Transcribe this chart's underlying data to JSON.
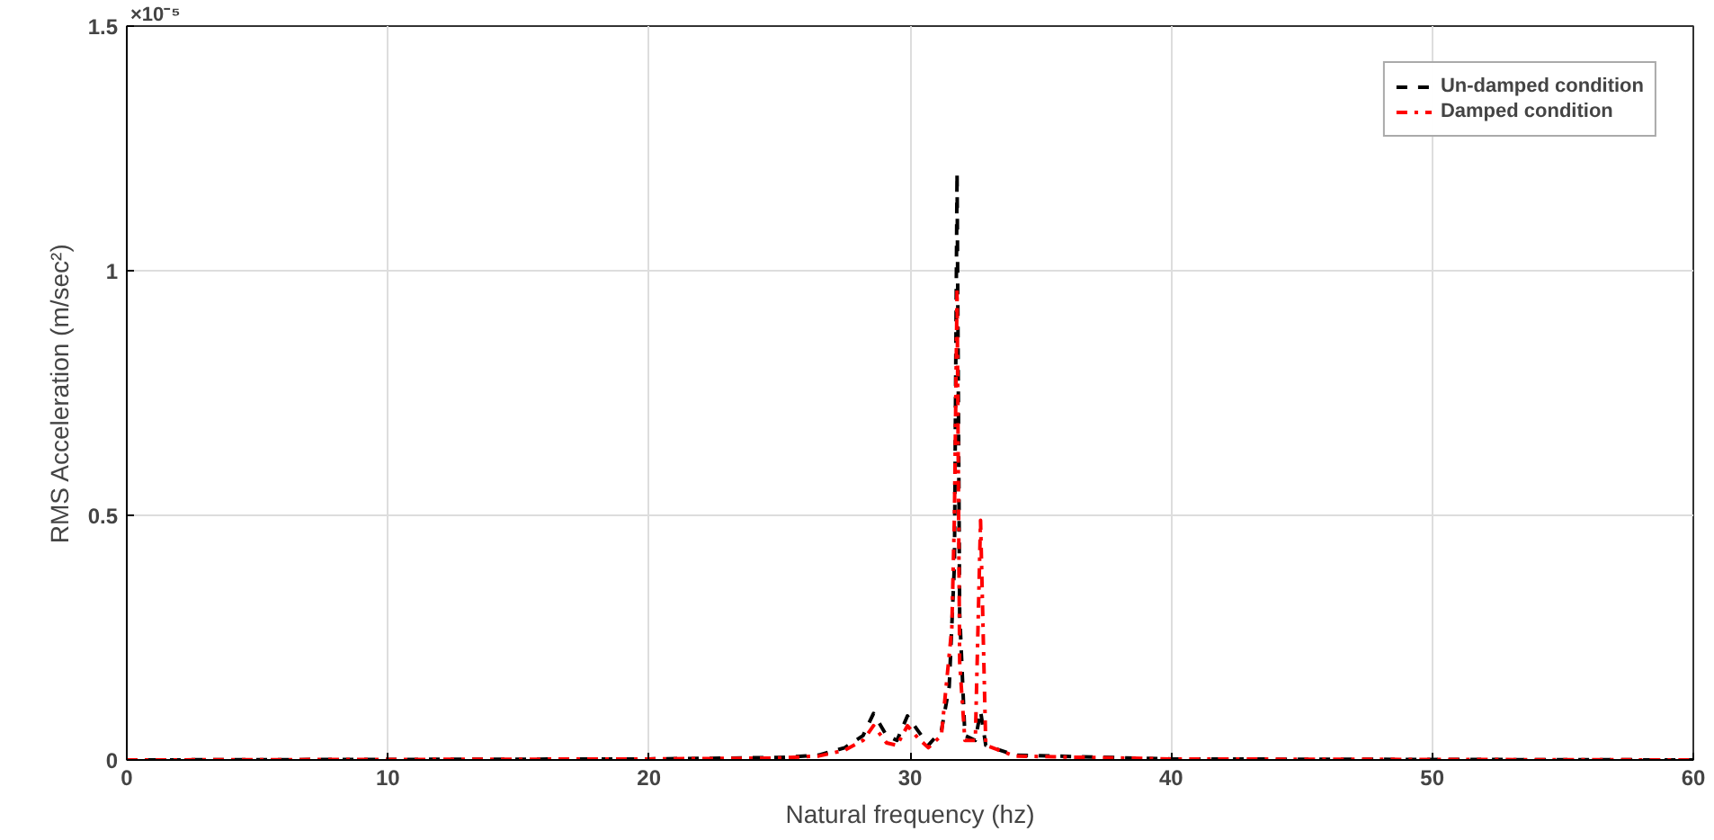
{
  "chart_data": {
    "type": "line",
    "xlabel": "Natural frequency (hz)",
    "ylabel": "RMS Acceleration (m/sec²)",
    "annotations": [
      "×10⁻⁵"
    ],
    "xlim": [
      0,
      60
    ],
    "xticks": [
      0,
      10,
      20,
      30,
      40,
      50,
      60
    ],
    "ylim": [
      0,
      1.5
    ],
    "yticks": [
      0,
      0.5,
      1,
      1.5
    ],
    "grid": true,
    "legend": "top right",
    "series": [
      {
        "name": "Un-damped condition",
        "color": "#000000",
        "line_style": "dashed",
        "x": [
          0,
          20,
          25,
          26.5,
          27.5,
          28.2,
          28.6,
          29.1,
          29.5,
          29.9,
          30.3,
          30.7,
          31.2,
          31.5,
          31.7,
          31.8,
          31.9,
          32.1,
          32.5,
          32.7,
          32.9,
          34,
          40,
          60
        ],
        "values": [
          0,
          0.002,
          0.005,
          0.01,
          0.025,
          0.05,
          0.095,
          0.05,
          0.04,
          0.09,
          0.06,
          0.03,
          0.06,
          0.15,
          0.4,
          1.2,
          0.3,
          0.05,
          0.04,
          0.1,
          0.03,
          0.01,
          0.002,
          0
        ]
      },
      {
        "name": "Damped condition",
        "color": "#ff0000",
        "line_style": "dashdot",
        "x": [
          0,
          20,
          25,
          26.5,
          27.5,
          28.2,
          28.6,
          29.1,
          29.5,
          29.9,
          30.3,
          30.7,
          31.2,
          31.6,
          31.7,
          31.8,
          31.9,
          32.1,
          32.5,
          32.7,
          32.9,
          34,
          40,
          60
        ],
        "values": [
          0,
          0.002,
          0.004,
          0.008,
          0.02,
          0.04,
          0.07,
          0.035,
          0.03,
          0.07,
          0.045,
          0.025,
          0.05,
          0.27,
          0.5,
          0.96,
          0.2,
          0.04,
          0.04,
          0.49,
          0.03,
          0.008,
          0.002,
          0
        ]
      }
    ]
  }
}
